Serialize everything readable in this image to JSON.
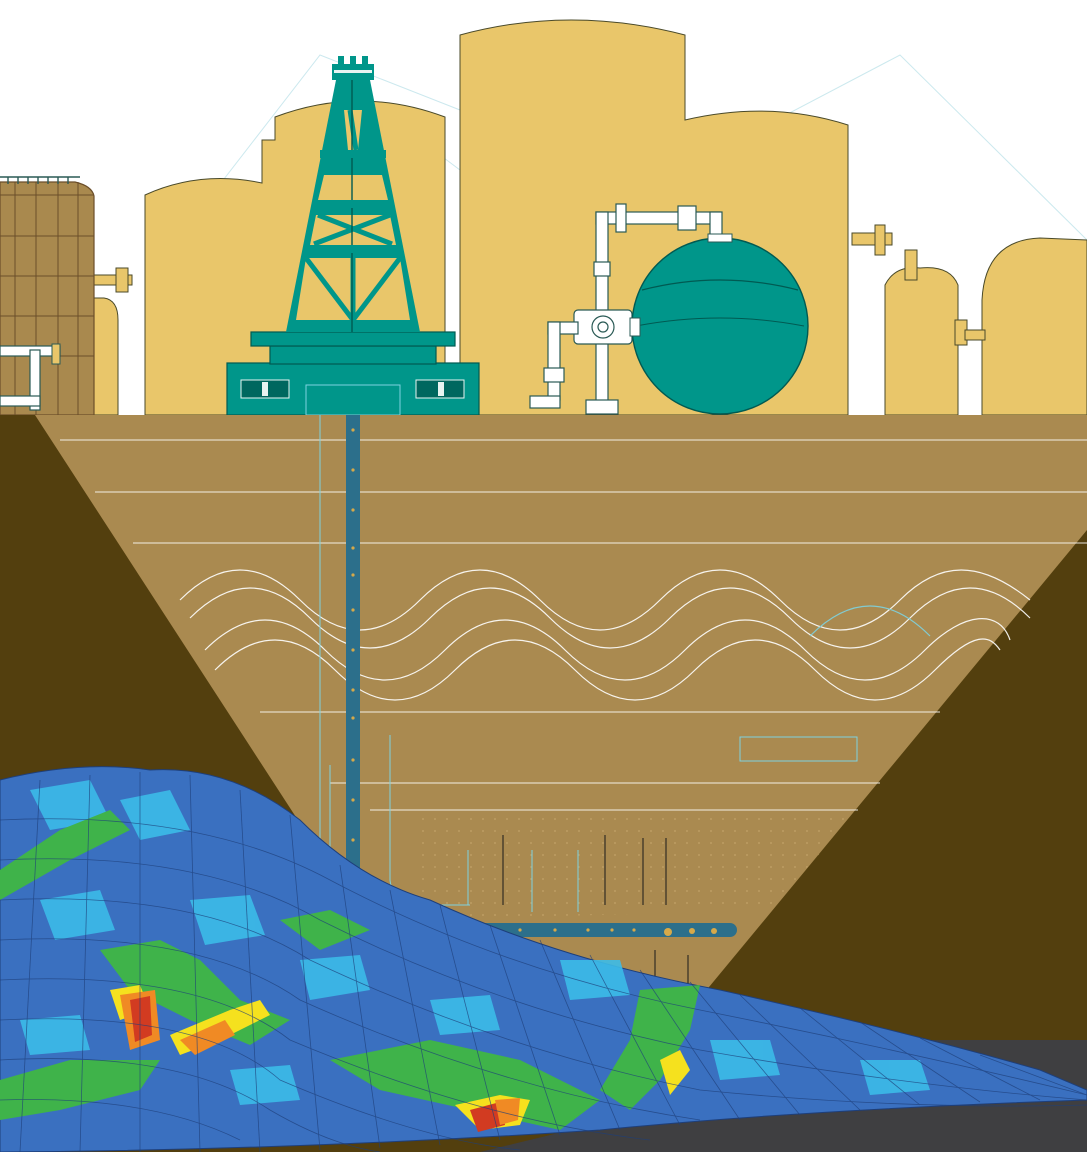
{
  "colors": {
    "sky": "#ffffff",
    "skyline": "#e9c66a",
    "skyline_outline": "#4a4a2a",
    "tank_brown": "#a9894e",
    "tank_brown_dark": "#8a6e3a",
    "teal": "#00968a",
    "teal_dark": "#00675f",
    "pipe_white": "#ffffff",
    "pipe_outline": "#2a5a55",
    "ground": "#aa8a50",
    "ground_dark": "#533f0e",
    "strata_line": "#ffffff",
    "wellbore": "#2c6f8b",
    "wellbore_dot": "#d6a94a",
    "mesh_blue": "#3a70c0",
    "mesh_light_blue": "#3cbbe8",
    "mesh_green": "#3fb34a",
    "mesh_yellow": "#f5e11e",
    "mesh_orange": "#f08a24",
    "mesh_red": "#d23b21",
    "floor_dark": "#3f3f41",
    "accent_cyan": "#7ed3e0"
  },
  "icons": [
    "derrick-icon",
    "storage-tank-icon",
    "spherical-tank-icon",
    "pipe-valve-icon",
    "wellbore-icon",
    "reservoir-mesh-icon"
  ]
}
